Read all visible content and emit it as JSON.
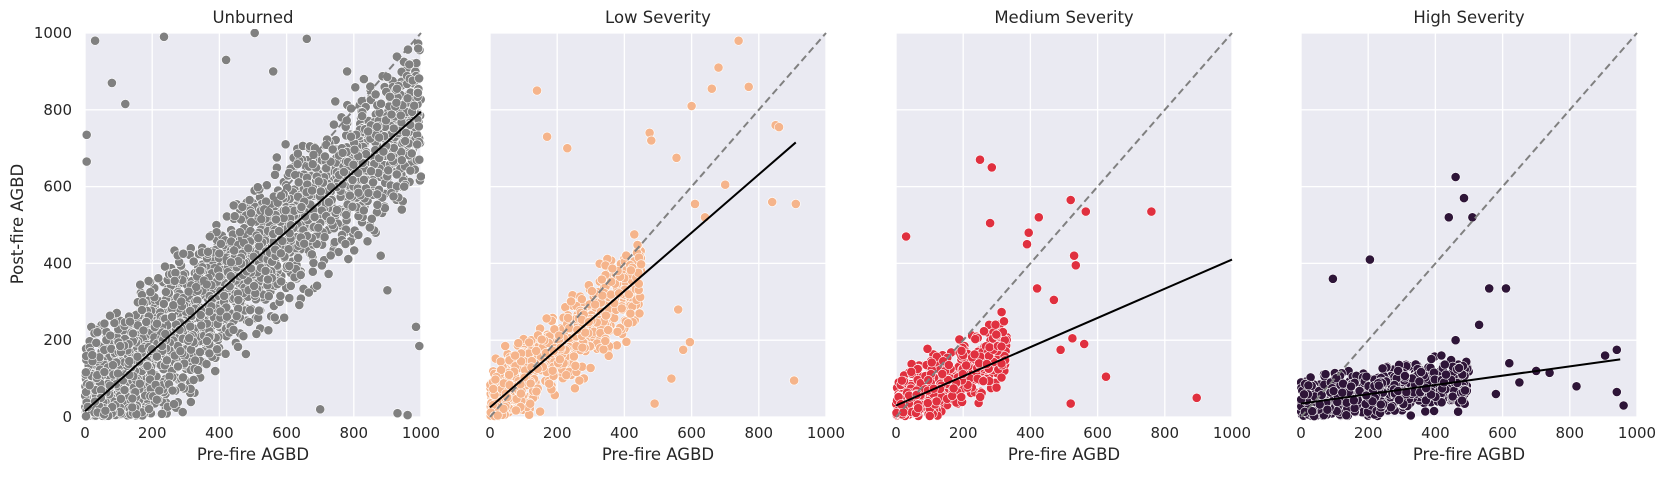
{
  "chart_data": {
    "type": "scatter",
    "shared_ylabel": "Post-fire AGBD",
    "xlim": [
      0,
      1000
    ],
    "ylim": [
      0,
      1000
    ],
    "xticks": [
      0,
      200,
      400,
      600,
      800,
      1000
    ],
    "yticks": [
      0,
      200,
      400,
      600,
      800,
      1000
    ],
    "grid": true,
    "identity_line": {
      "style": "dashed",
      "color": "#808080",
      "from": [
        0,
        0
      ],
      "to": [
        1000,
        1000
      ]
    },
    "panels": [
      {
        "title": "Unburned",
        "xlabel": "Pre-fire AGBD",
        "color": "#808080",
        "fit": {
          "x": [
            0,
            1000
          ],
          "y": [
            15,
            795
          ]
        },
        "cloud": {
          "n": 2600,
          "x_range": [
            0,
            1000
          ],
          "slope": 0.78,
          "intercept": 15,
          "spread": 150
        },
        "points": [
          {
            "x": 30,
            "y": 980
          },
          {
            "x": 235,
            "y": 990
          },
          {
            "x": 505,
            "y": 1000
          },
          {
            "x": 660,
            "y": 985
          },
          {
            "x": 865,
            "y": 840
          },
          {
            "x": 960,
            "y": 830
          },
          {
            "x": 995,
            "y": 670
          },
          {
            "x": 985,
            "y": 235
          },
          {
            "x": 995,
            "y": 185
          },
          {
            "x": 930,
            "y": 10
          },
          {
            "x": 960,
            "y": 5
          },
          {
            "x": 870,
            "y": 580
          },
          {
            "x": 830,
            "y": 880
          },
          {
            "x": 780,
            "y": 900
          },
          {
            "x": 5,
            "y": 735
          },
          {
            "x": 5,
            "y": 665
          },
          {
            "x": 80,
            "y": 870
          },
          {
            "x": 120,
            "y": 815
          },
          {
            "x": 420,
            "y": 930
          },
          {
            "x": 560,
            "y": 900
          },
          {
            "x": 900,
            "y": 330
          },
          {
            "x": 880,
            "y": 420
          },
          {
            "x": 950,
            "y": 600
          },
          {
            "x": 700,
            "y": 20
          }
        ]
      },
      {
        "title": "Low Severity",
        "xlabel": "Pre-fire AGBD",
        "color": "#f5b48b",
        "fit": {
          "x": [
            0,
            910
          ],
          "y": [
            25,
            715
          ]
        },
        "cloud": {
          "n": 700,
          "x_range": [
            0,
            450
          ],
          "slope": 0.75,
          "intercept": 25,
          "spread": 90
        },
        "points": [
          {
            "x": 740,
            "y": 980
          },
          {
            "x": 680,
            "y": 910
          },
          {
            "x": 770,
            "y": 860
          },
          {
            "x": 660,
            "y": 855
          },
          {
            "x": 600,
            "y": 810
          },
          {
            "x": 140,
            "y": 850
          },
          {
            "x": 850,
            "y": 760
          },
          {
            "x": 860,
            "y": 755
          },
          {
            "x": 910,
            "y": 555
          },
          {
            "x": 840,
            "y": 560
          },
          {
            "x": 905,
            "y": 95
          },
          {
            "x": 555,
            "y": 675
          },
          {
            "x": 700,
            "y": 605
          },
          {
            "x": 610,
            "y": 555
          },
          {
            "x": 475,
            "y": 740
          },
          {
            "x": 480,
            "y": 720
          },
          {
            "x": 170,
            "y": 730
          },
          {
            "x": 230,
            "y": 700
          },
          {
            "x": 595,
            "y": 195
          },
          {
            "x": 575,
            "y": 175
          },
          {
            "x": 560,
            "y": 280
          },
          {
            "x": 540,
            "y": 100
          },
          {
            "x": 490,
            "y": 35
          },
          {
            "x": 640,
            "y": 520
          }
        ]
      },
      {
        "title": "Medium Severity",
        "xlabel": "Pre-fire AGBD",
        "color": "#e0303f",
        "fit": {
          "x": [
            0,
            1000
          ],
          "y": [
            30,
            410
          ]
        },
        "cloud": {
          "n": 520,
          "x_range": [
            0,
            330
          ],
          "slope": 0.5,
          "intercept": 15,
          "spread": 70
        },
        "points": [
          {
            "x": 250,
            "y": 670
          },
          {
            "x": 285,
            "y": 650
          },
          {
            "x": 760,
            "y": 535
          },
          {
            "x": 520,
            "y": 565
          },
          {
            "x": 565,
            "y": 535
          },
          {
            "x": 425,
            "y": 520
          },
          {
            "x": 280,
            "y": 505
          },
          {
            "x": 395,
            "y": 480
          },
          {
            "x": 30,
            "y": 470
          },
          {
            "x": 390,
            "y": 450
          },
          {
            "x": 530,
            "y": 420
          },
          {
            "x": 535,
            "y": 395
          },
          {
            "x": 625,
            "y": 105
          },
          {
            "x": 895,
            "y": 50
          },
          {
            "x": 520,
            "y": 35
          },
          {
            "x": 560,
            "y": 190
          },
          {
            "x": 525,
            "y": 205
          },
          {
            "x": 490,
            "y": 175
          },
          {
            "x": 420,
            "y": 335
          },
          {
            "x": 470,
            "y": 305
          }
        ]
      },
      {
        "title": "High Severity",
        "xlabel": "Pre-fire AGBD",
        "color": "#2e1538",
        "fit": {
          "x": [
            0,
            950
          ],
          "y": [
            35,
            150
          ]
        },
        "cloud": {
          "n": 650,
          "x_range": [
            0,
            500
          ],
          "slope": 0.13,
          "intercept": 30,
          "spread": 55
        },
        "points": [
          {
            "x": 460,
            "y": 625
          },
          {
            "x": 485,
            "y": 570
          },
          {
            "x": 440,
            "y": 520
          },
          {
            "x": 510,
            "y": 520
          },
          {
            "x": 205,
            "y": 410
          },
          {
            "x": 95,
            "y": 360
          },
          {
            "x": 560,
            "y": 335
          },
          {
            "x": 610,
            "y": 335
          },
          {
            "x": 940,
            "y": 175
          },
          {
            "x": 905,
            "y": 160
          },
          {
            "x": 960,
            "y": 30
          },
          {
            "x": 940,
            "y": 65
          },
          {
            "x": 820,
            "y": 80
          },
          {
            "x": 700,
            "y": 120
          },
          {
            "x": 740,
            "y": 115
          },
          {
            "x": 650,
            "y": 90
          },
          {
            "x": 580,
            "y": 60
          },
          {
            "x": 620,
            "y": 140
          },
          {
            "x": 530,
            "y": 240
          },
          {
            "x": 460,
            "y": 200
          }
        ]
      }
    ]
  }
}
